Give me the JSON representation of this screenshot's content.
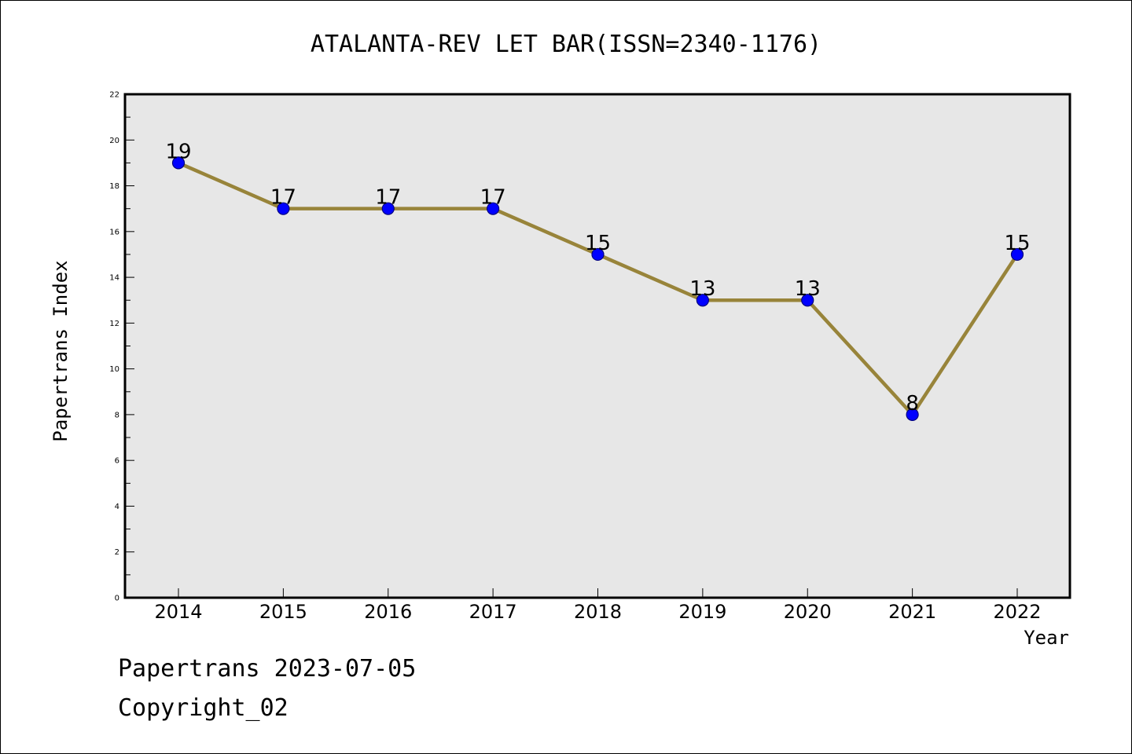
{
  "footer": {
    "line1": "Papertrans 2023-07-05",
    "line2": "Copyright_02"
  },
  "colors": {
    "plot_background": "#e7e7e7",
    "line": "#98843a",
    "marker_fill": "#0000ff",
    "marker_edge": "#000080",
    "axis": "#000000"
  },
  "chart_data": {
    "type": "line",
    "title": "ATALANTA-REV LET BAR(ISSN=2340-1176)",
    "xlabel": "Year",
    "ylabel": "Papertrans Index",
    "categories": [
      "2014",
      "2015",
      "2016",
      "2017",
      "2018",
      "2019",
      "2020",
      "2021",
      "2022"
    ],
    "series": [
      {
        "values": [
          19,
          17,
          17,
          17,
          15,
          13,
          13,
          8,
          15
        ]
      }
    ],
    "data_labels": [
      "19",
      "17",
      "17",
      "17",
      "15",
      "13",
      "13",
      "8",
      "15"
    ],
    "ylim": [
      0,
      22
    ],
    "yticks": [
      "0",
      "2",
      "4",
      "6",
      "8",
      "10",
      "12",
      "14",
      "16",
      "18",
      "20",
      "22"
    ],
    "grid": false,
    "legend": "none"
  }
}
